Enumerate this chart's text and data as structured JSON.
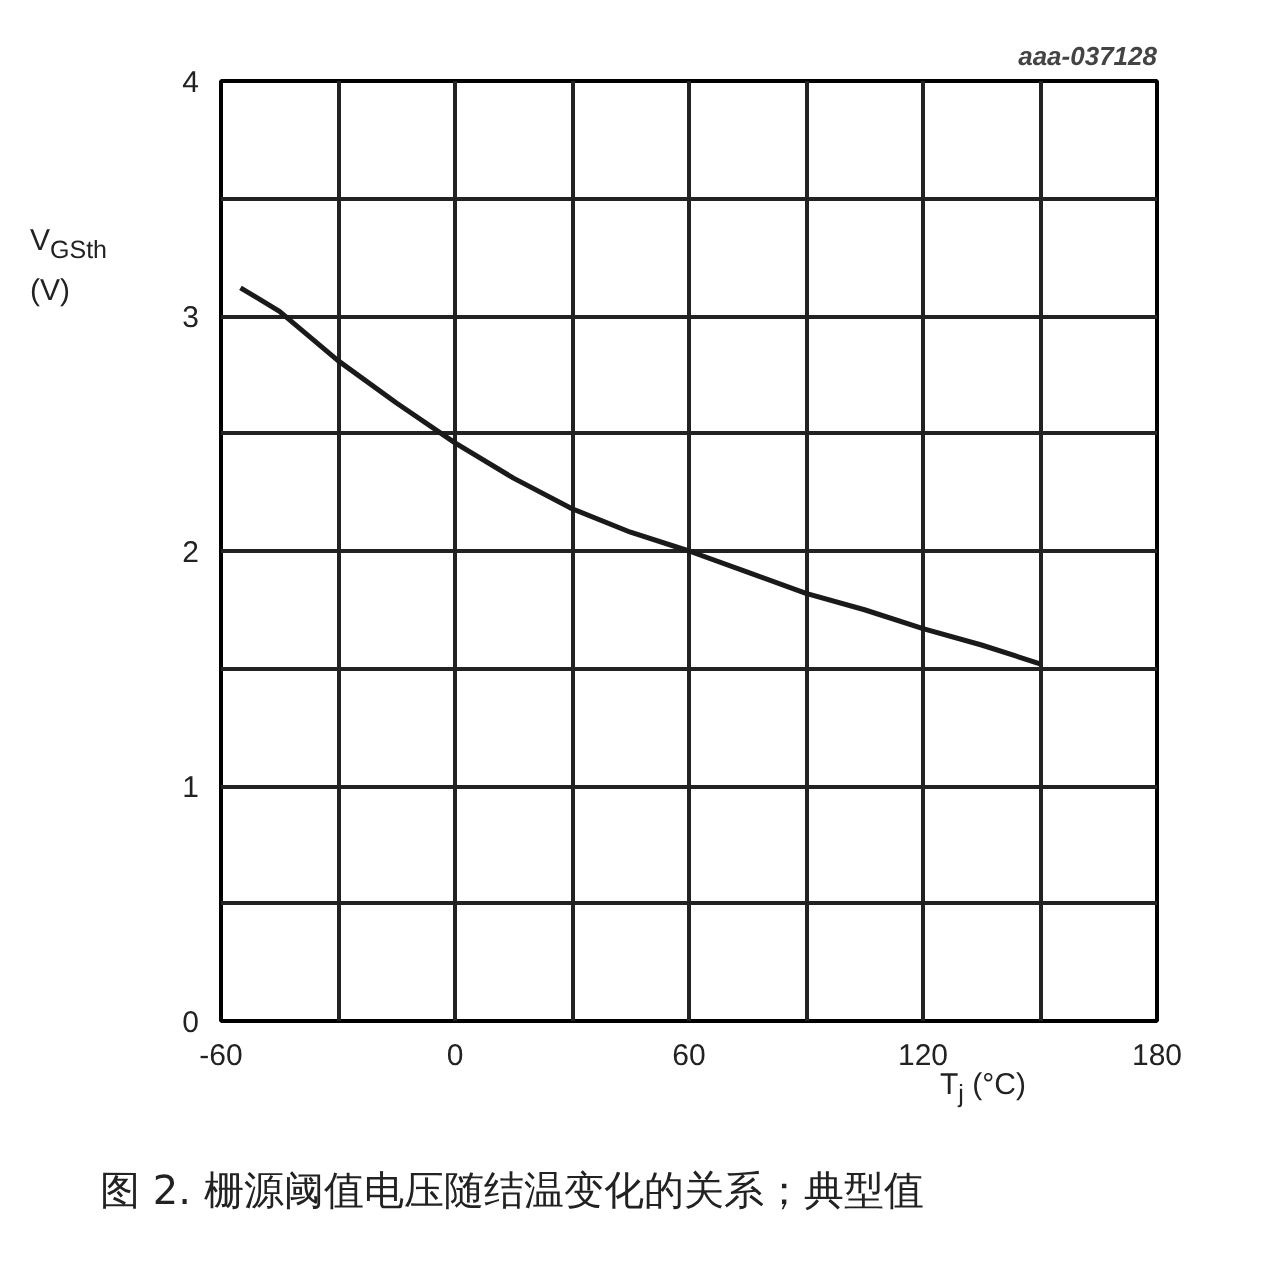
{
  "chart_data": {
    "type": "line",
    "xlabel": "T$_{j}$ (°C)",
    "ylabel": "V$_{GSth}$ (V)",
    "x": [
      -55,
      -45,
      -30,
      -15,
      0,
      15,
      30,
      45,
      60,
      75,
      90,
      105,
      120,
      135,
      150
    ],
    "series": [
      {
        "color": "#1a1a1a",
        "values": [
          3.12,
          3.02,
          2.81,
          2.63,
          2.46,
          2.31,
          2.18,
          2.08,
          2.0,
          1.91,
          1.82,
          1.75,
          1.67,
          1.6,
          1.52
        ]
      }
    ],
    "xlim": [
      -60,
      180
    ],
    "ylim": [
      0,
      4
    ],
    "xticks": [
      -60,
      {
        "value": -30,
        "label": null
      },
      0,
      {
        "value": 30,
        "label": null
      },
      60,
      {
        "value": 90,
        "label": null
      },
      120,
      {
        "value": 150,
        "label": null
      },
      180
    ],
    "yticks": [
      0,
      {
        "value": 0.5,
        "label": null
      },
      1,
      {
        "value": 1.5,
        "label": null
      },
      2,
      {
        "value": 2.5,
        "label": null
      },
      3,
      {
        "value": 3.5,
        "label": null
      },
      4
    ],
    "grid": true,
    "marker": "none",
    "line_style": "solid",
    "annotations": [
      "aaa-037128",
      "图 2. 栅源阈值电压随结温变化的关系；典型值"
    ]
  }
}
